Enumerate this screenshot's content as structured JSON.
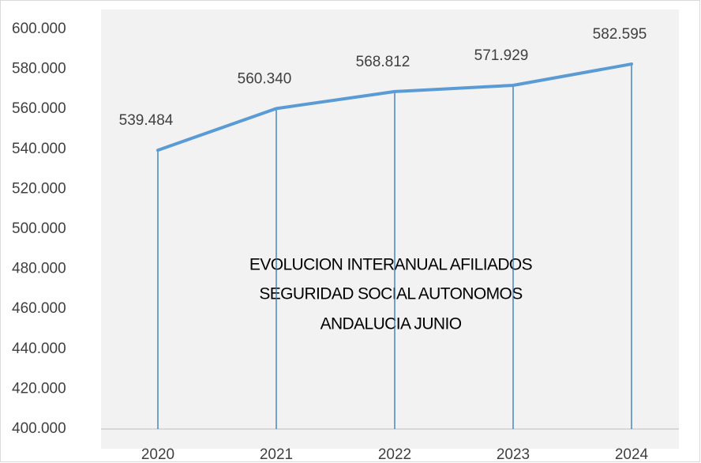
{
  "chart_data": {
    "type": "line",
    "title": [
      "EVOLUCION INTERANUAL AFILIADOS",
      "SEGURIDAD SOCIAL AUTONOMOS",
      "ANDALUCIA JUNIO"
    ],
    "categories": [
      "2020",
      "2021",
      "2022",
      "2023",
      "2024"
    ],
    "values": [
      539484,
      560340,
      568812,
      571929,
      582595
    ],
    "value_labels": [
      "539.484",
      "560.340",
      "568.812",
      "571.929",
      "582.595"
    ],
    "color": "#5b9bd5",
    "drop_lines": true,
    "ylim": [
      400000,
      600000
    ],
    "yticks": [
      {
        "value": 400000,
        "label": "400.000"
      },
      {
        "value": 420000,
        "label": "420.000"
      },
      {
        "value": 440000,
        "label": "440.000"
      },
      {
        "value": 460000,
        "label": "460.000"
      },
      {
        "value": 480000,
        "label": "480.000"
      },
      {
        "value": 500000,
        "label": "500.000"
      },
      {
        "value": 520000,
        "label": "520.000"
      },
      {
        "value": 540000,
        "label": "540.000"
      },
      {
        "value": 560000,
        "label": "560.000"
      },
      {
        "value": 580000,
        "label": "580.000"
      },
      {
        "value": 600000,
        "label": "600.000"
      }
    ]
  }
}
